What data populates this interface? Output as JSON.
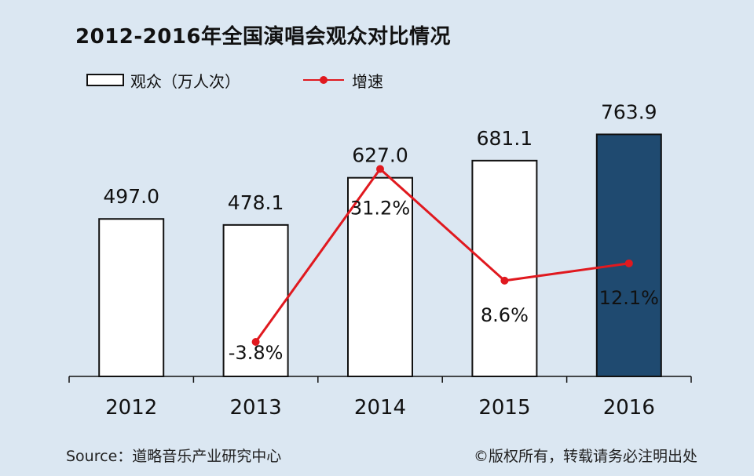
{
  "chart_data": {
    "type": "bar",
    "title": "2012-2016年全国演唱会观众对比情况",
    "categories": [
      "2012",
      "2013",
      "2014",
      "2015",
      "2016"
    ],
    "series": [
      {
        "name": "观众（万人次）",
        "type": "bar",
        "values": [
          497.0,
          478.1,
          627.0,
          681.1,
          763.9
        ],
        "value_labels": [
          "497.0",
          "478.1",
          "627.0",
          "681.1",
          "763.9"
        ]
      },
      {
        "name": "增速",
        "type": "line",
        "values": [
          null,
          -3.8,
          31.2,
          8.6,
          12.1
        ],
        "value_labels": [
          "",
          "-3.8%",
          "31.2%",
          "8.6%",
          "12.1%"
        ]
      }
    ],
    "colors": {
      "bar_fill": "#ffffff",
      "bar_highlight_fill": "#1f4a70",
      "bar_stroke": "#111111",
      "line": "#e0191f"
    },
    "legend_position": "top-left"
  },
  "source": "Source：道略音乐产业研究中心",
  "copyright": "©版权所有，转载请务必注明出处"
}
